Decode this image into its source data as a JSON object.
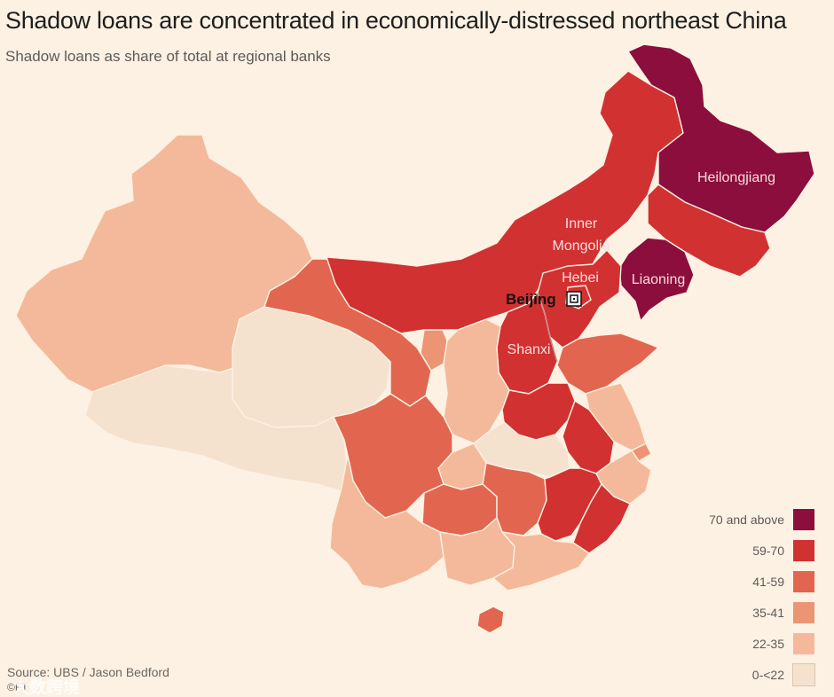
{
  "title": "Shadow loans are concentrated in economically-distressed northeast China",
  "subtitle": "Shadow loans as share of total at regional banks",
  "colors": {
    "70 and above": "#8c0e3c",
    "59-70": "#d23131",
    "41-59": "#e2664f",
    "35-41": "#ec9575",
    "22-35": "#f4b99b",
    "0-<22": "#f4e2cf"
  },
  "map_labels": {
    "heilongjiang": "Heilongjiang",
    "inner_mongolia_line1": "Inner",
    "inner_mongolia_line2": "Mongolia",
    "hebei": "Hebei",
    "liaoning": "Liaoning",
    "beijing": "Beijing",
    "shanxi": "Shanxi"
  },
  "legend": [
    {
      "label": "70 and above",
      "color": "#8c0e3c"
    },
    {
      "label": "59-70",
      "color": "#d23131"
    },
    {
      "label": "41-59",
      "color": "#e2664f"
    },
    {
      "label": "35-41",
      "color": "#ec9575"
    },
    {
      "label": "22-35",
      "color": "#f4b99b"
    },
    {
      "label": "0-<22",
      "color": "#f4e2cf"
    }
  ],
  "source": "Source: UBS / Jason Bedford",
  "logo": "©FT",
  "watermark": "大数跨境"
}
